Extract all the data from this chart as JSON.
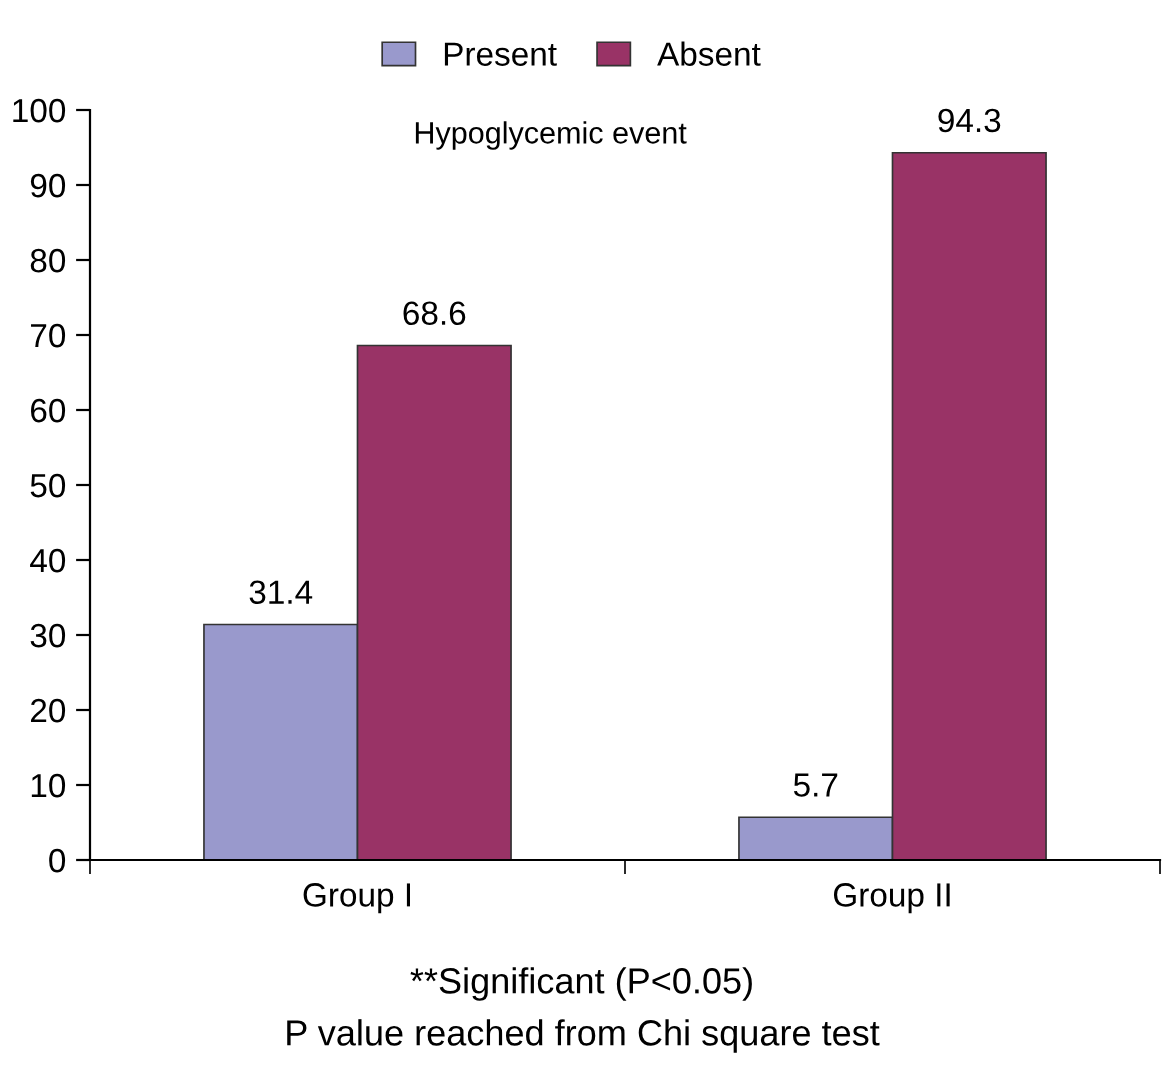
{
  "chart_data": {
    "type": "bar",
    "title": "Hypoglycemic event",
    "categories": [
      "Group I",
      "Group II"
    ],
    "series": [
      {
        "name": "Present",
        "color": "#9999cc",
        "values": [
          31.4,
          5.7
        ]
      },
      {
        "name": "Absent",
        "color": "#993366",
        "values": [
          68.6,
          94.3
        ]
      }
    ],
    "ylim": [
      0,
      100
    ],
    "yticks": [
      0,
      10,
      20,
      30,
      40,
      50,
      60,
      70,
      80,
      90,
      100
    ],
    "data_labels": true,
    "grid": false,
    "legend": "top",
    "annotations": [
      "**Significant (P<0.05)",
      "P value reached from Chi square test"
    ]
  }
}
